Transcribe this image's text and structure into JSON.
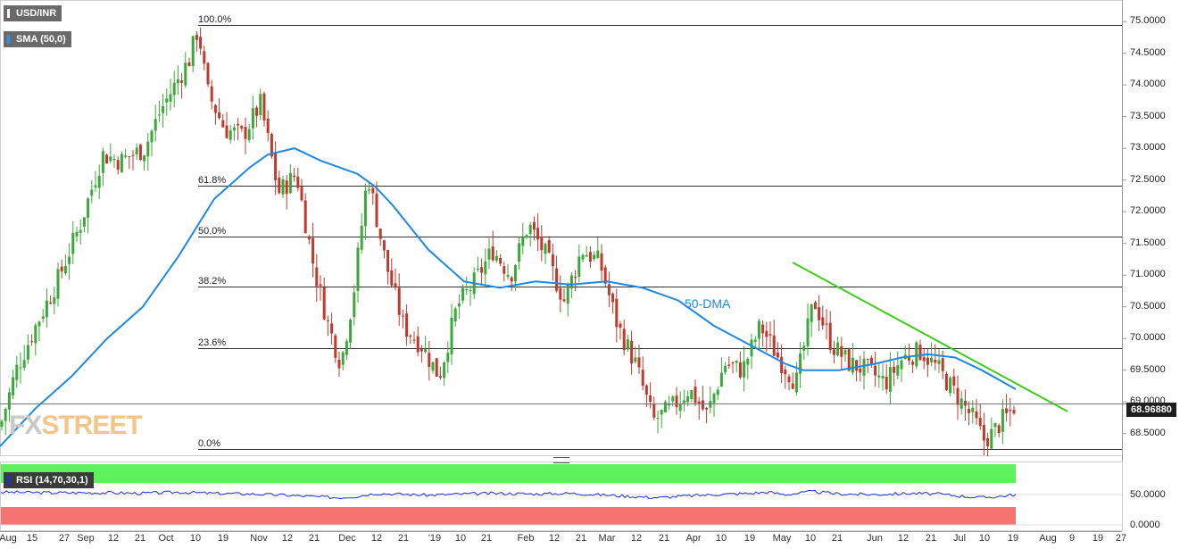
{
  "header": {
    "symbol": "USD/INR",
    "indicator": "SMA (50,0)"
  },
  "rsi_panel": {
    "label": "RSI (14,70,30,1)",
    "levels": [
      "50.0000",
      "0.0000"
    ]
  },
  "watermark": {
    "fx": "FX",
    "street": "STREET"
  },
  "annotation": {
    "dma_label": "50-DMA"
  },
  "last_price": "68.96880",
  "colors": {
    "bull": "#3aa83a",
    "bear": "#c0392b",
    "sma": "#1e88e5",
    "trend": "#3dcc1c",
    "overbought": "#5ef05e",
    "oversold": "#f57373",
    "rsi": "#1a32d8"
  },
  "chart_data": {
    "type": "candlestick",
    "title": "USD/INR",
    "ylim": [
      68.2,
      75.1
    ],
    "y_ticks": [
      "75.0000",
      "74.5000",
      "74.0000",
      "73.5000",
      "73.0000",
      "72.5000",
      "72.0000",
      "71.5000",
      "71.0000",
      "70.5000",
      "70.0000",
      "69.5000",
      "69.0000",
      "68.5000"
    ],
    "x_ticks": [
      "Aug",
      "15",
      "27",
      "Sep",
      "12",
      "21",
      "Oct",
      "10",
      "19",
      "Nov",
      "12",
      "21",
      "Dec",
      "12",
      "21",
      "'19",
      "10",
      "21",
      "Feb",
      "12",
      "21",
      "Mar",
      "12",
      "21",
      "Apr",
      "10",
      "19",
      "May",
      "10",
      "21",
      "Jun",
      "12",
      "21",
      "Jul",
      "10",
      "19",
      "Aug",
      "9",
      "19",
      "27"
    ],
    "fibonacci": [
      {
        "label": "100.0%",
        "value": 74.95
      },
      {
        "label": "61.8%",
        "value": 72.41
      },
      {
        "label": "50.0%",
        "value": 71.61
      },
      {
        "label": "38.2%",
        "value": 70.82
      },
      {
        "label": "23.6%",
        "value": 69.85
      },
      {
        "label": "0.0%",
        "value": 68.25
      }
    ],
    "current_price": 68.9688,
    "price_anchors": [
      [
        0,
        68.6
      ],
      [
        18,
        69.5
      ],
      [
        40,
        70.2
      ],
      [
        64,
        70.9
      ],
      [
        90,
        71.8
      ],
      [
        115,
        72.9
      ],
      [
        135,
        72.8
      ],
      [
        162,
        73.0
      ],
      [
        180,
        73.6
      ],
      [
        200,
        74.1
      ],
      [
        212,
        74.4
      ],
      [
        222,
        74.9
      ],
      [
        232,
        73.9
      ],
      [
        252,
        73.3
      ],
      [
        272,
        73.2
      ],
      [
        292,
        73.7
      ],
      [
        312,
        72.3
      ],
      [
        332,
        72.6
      ],
      [
        352,
        71.1
      ],
      [
        368,
        70.2
      ],
      [
        382,
        69.6
      ],
      [
        396,
        70.7
      ],
      [
        412,
        72.6
      ],
      [
        432,
        71.2
      ],
      [
        452,
        70.2
      ],
      [
        472,
        69.9
      ],
      [
        492,
        69.4
      ],
      [
        512,
        70.5
      ],
      [
        532,
        70.9
      ],
      [
        552,
        71.4
      ],
      [
        572,
        71.0
      ],
      [
        592,
        71.8
      ],
      [
        612,
        71.3
      ],
      [
        632,
        70.6
      ],
      [
        652,
        71.4
      ],
      [
        672,
        71.2
      ],
      [
        692,
        70.2
      ],
      [
        712,
        69.6
      ],
      [
        732,
        68.7
      ],
      [
        752,
        68.9
      ],
      [
        772,
        69.2
      ],
      [
        792,
        68.8
      ],
      [
        812,
        69.6
      ],
      [
        832,
        69.5
      ],
      [
        852,
        70.2
      ],
      [
        872,
        69.7
      ],
      [
        892,
        69.3
      ],
      [
        912,
        70.6
      ],
      [
        932,
        69.9
      ],
      [
        952,
        69.6
      ],
      [
        972,
        69.5
      ],
      [
        992,
        69.3
      ],
      [
        1012,
        69.7
      ],
      [
        1032,
        69.8
      ],
      [
        1052,
        69.5
      ],
      [
        1072,
        69.1
      ],
      [
        1092,
        68.7
      ],
      [
        1102,
        68.4
      ],
      [
        1112,
        68.5
      ],
      [
        1122,
        68.7
      ],
      [
        1130,
        68.8
      ],
      [
        1138,
        68.97
      ]
    ],
    "sma_50": [
      [
        0,
        68.3
      ],
      [
        40,
        68.9
      ],
      [
        80,
        69.4
      ],
      [
        120,
        70.0
      ],
      [
        160,
        70.5
      ],
      [
        200,
        71.3
      ],
      [
        240,
        72.2
      ],
      [
        280,
        72.7
      ],
      [
        300,
        72.9
      ],
      [
        330,
        73.0
      ],
      [
        360,
        72.8
      ],
      [
        400,
        72.6
      ],
      [
        420,
        72.4
      ],
      [
        440,
        72.1
      ],
      [
        480,
        71.4
      ],
      [
        520,
        70.9
      ],
      [
        560,
        70.8
      ],
      [
        600,
        70.9
      ],
      [
        640,
        70.85
      ],
      [
        680,
        70.9
      ],
      [
        720,
        70.8
      ],
      [
        760,
        70.6
      ],
      [
        800,
        70.2
      ],
      [
        840,
        69.9
      ],
      [
        880,
        69.6
      ],
      [
        900,
        69.5
      ],
      [
        940,
        69.5
      ],
      [
        980,
        69.6
      ],
      [
        1010,
        69.7
      ],
      [
        1040,
        69.75
      ],
      [
        1070,
        69.7
      ],
      [
        1100,
        69.5
      ],
      [
        1138,
        69.2
      ]
    ],
    "trendline": [
      [
        888,
        71.2
      ],
      [
        1196,
        68.85
      ]
    ],
    "rsi_series_anchors": [
      [
        0,
        54
      ],
      [
        60,
        53
      ],
      [
        120,
        53
      ],
      [
        160,
        52
      ],
      [
        200,
        54
      ],
      [
        240,
        52
      ],
      [
        280,
        51
      ],
      [
        320,
        49
      ],
      [
        360,
        46
      ],
      [
        380,
        45
      ],
      [
        400,
        47
      ],
      [
        420,
        52
      ],
      [
        440,
        51
      ],
      [
        480,
        49
      ],
      [
        520,
        51
      ],
      [
        560,
        52
      ],
      [
        600,
        51
      ],
      [
        640,
        52
      ],
      [
        680,
        49
      ],
      [
        720,
        46
      ],
      [
        740,
        45
      ],
      [
        760,
        47
      ],
      [
        800,
        50
      ],
      [
        840,
        52
      ],
      [
        860,
        54
      ],
      [
        880,
        50
      ],
      [
        910,
        55
      ],
      [
        940,
        51
      ],
      [
        980,
        50
      ],
      [
        1020,
        52
      ],
      [
        1050,
        51
      ],
      [
        1080,
        47
      ],
      [
        1100,
        45
      ],
      [
        1120,
        47
      ],
      [
        1138,
        50
      ]
    ]
  }
}
